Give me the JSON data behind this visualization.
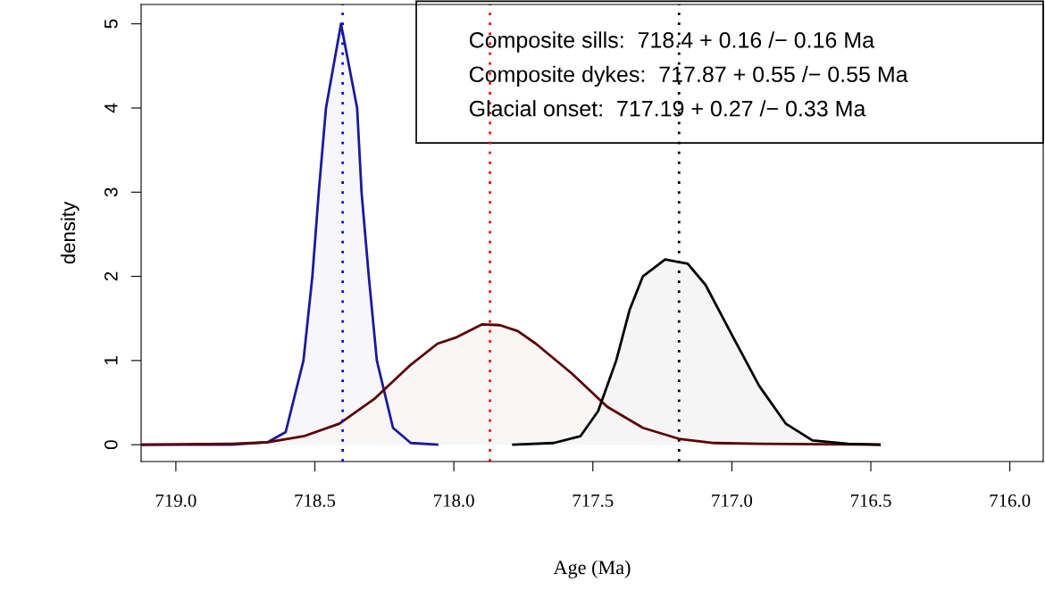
{
  "chart_data": {
    "type": "area",
    "xlabel": "Age (Ma)",
    "ylabel": "density",
    "xlim": [
      719.125,
      715.88
    ],
    "xticks": [
      {
        "value": 719.0,
        "label": "719.0"
      },
      {
        "value": 718.5,
        "label": "718.5"
      },
      {
        "value": 718.0,
        "label": "718.0"
      },
      {
        "value": 717.5,
        "label": "717.5"
      },
      {
        "value": 717.0,
        "label": "717.0"
      },
      {
        "value": 716.5,
        "label": "716.5"
      },
      {
        "value": 716.0,
        "label": "716.0"
      }
    ],
    "ylim": [
      -0.2,
      5.23
    ],
    "yticks": [
      0,
      1,
      2,
      3,
      4,
      5
    ],
    "grid": false,
    "series": [
      {
        "color": "#1a1a9a",
        "x": [
          719.12,
          718.8,
          718.669,
          718.605,
          718.541,
          718.509,
          718.486,
          718.46,
          718.406,
          718.348,
          718.332,
          718.306,
          718.277,
          718.219,
          718.155,
          718.06
        ],
        "values": [
          0,
          0,
          0.03,
          0.15,
          1.0,
          2.0,
          3.0,
          4.0,
          5.0,
          4.0,
          3.0,
          2.0,
          1.0,
          0.2,
          0.02,
          0
        ]
      },
      {
        "color": "#5a0000",
        "x": [
          719.12,
          718.8,
          718.669,
          718.541,
          718.412,
          718.284,
          718.155,
          718.059,
          717.995,
          717.898,
          717.834,
          717.77,
          717.705,
          717.577,
          717.448,
          717.32,
          717.191,
          717.063,
          716.902,
          716.469
        ],
        "values": [
          0,
          0.01,
          0.03,
          0.1,
          0.25,
          0.55,
          0.95,
          1.2,
          1.27,
          1.43,
          1.42,
          1.35,
          1.2,
          0.85,
          0.45,
          0.2,
          0.07,
          0.02,
          0.01,
          0
        ]
      },
      {
        "color": "#000000",
        "x": [
          717.786,
          717.641,
          717.545,
          717.481,
          717.416,
          717.368,
          717.32,
          717.24,
          717.159,
          717.095,
          716.999,
          716.902,
          716.806,
          716.71,
          716.581,
          716.469
        ],
        "values": [
          0,
          0.02,
          0.1,
          0.4,
          1.0,
          1.6,
          2.0,
          2.2,
          2.15,
          1.9,
          1.3,
          0.7,
          0.25,
          0.05,
          0.01,
          0
        ]
      }
    ],
    "ref_lines": [
      {
        "axis": "x",
        "value": 718.4,
        "color": "#0000ff",
        "line_style": "dotted"
      },
      {
        "axis": "x",
        "value": 717.87,
        "color": "#ff0000",
        "line_style": "dotted"
      },
      {
        "axis": "x",
        "value": 717.19,
        "color": "#000000",
        "line_style": "dotted"
      }
    ],
    "annotations": [
      "Composite sills:  718.4 + 0.16 /− 0.16 Ma",
      "Composite dykes:  717.87 + 0.55 /− 0.55 Ma",
      "Glacial onset:  717.19 + 0.27 /− 0.33 Ma"
    ]
  }
}
